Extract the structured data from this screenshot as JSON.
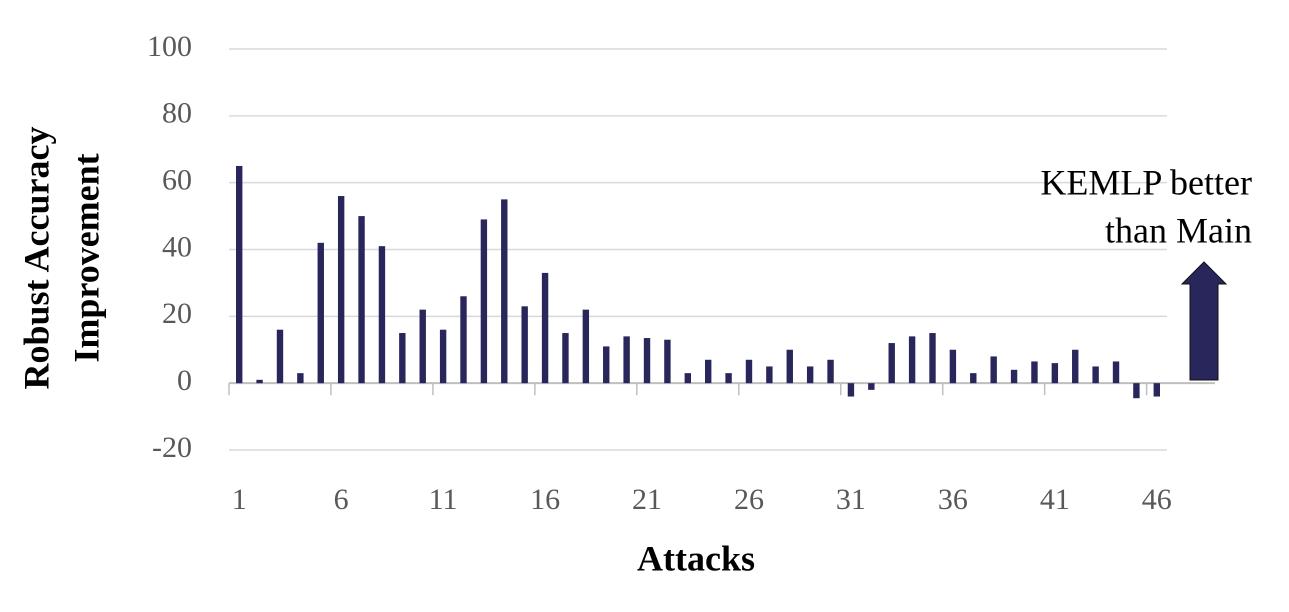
{
  "chart_data": {
    "type": "bar",
    "x_label": "Attacks",
    "y_label": [
      "Robust Accuracy",
      "Improvement"
    ],
    "annotation": [
      "KEMLP better",
      "than Main"
    ],
    "categories": [
      "1",
      null,
      null,
      null,
      null,
      "6",
      null,
      null,
      null,
      null,
      "11",
      null,
      null,
      null,
      null,
      "16",
      null,
      null,
      null,
      null,
      "21",
      null,
      null,
      null,
      null,
      "26",
      null,
      null,
      null,
      null,
      "31",
      null,
      null,
      null,
      null,
      "36",
      null,
      null,
      null,
      null,
      "41",
      null,
      null,
      null,
      null,
      "46"
    ],
    "values": [
      65,
      1,
      16,
      3,
      42,
      56,
      50,
      41,
      15,
      22,
      16,
      26,
      49,
      55,
      23,
      33,
      15,
      22,
      11,
      14,
      13.5,
      13,
      3,
      7,
      3,
      7,
      5,
      10,
      5,
      7,
      -4,
      -2,
      12,
      14,
      15,
      10,
      3,
      8,
      4,
      6.5,
      6,
      10,
      5,
      6.5,
      -4.5,
      -4
    ],
    "color": "#29265b",
    "ylim": [
      -20,
      100
    ],
    "yticks": [
      -20,
      0,
      20,
      40,
      60,
      80,
      100
    ],
    "grid": true
  }
}
